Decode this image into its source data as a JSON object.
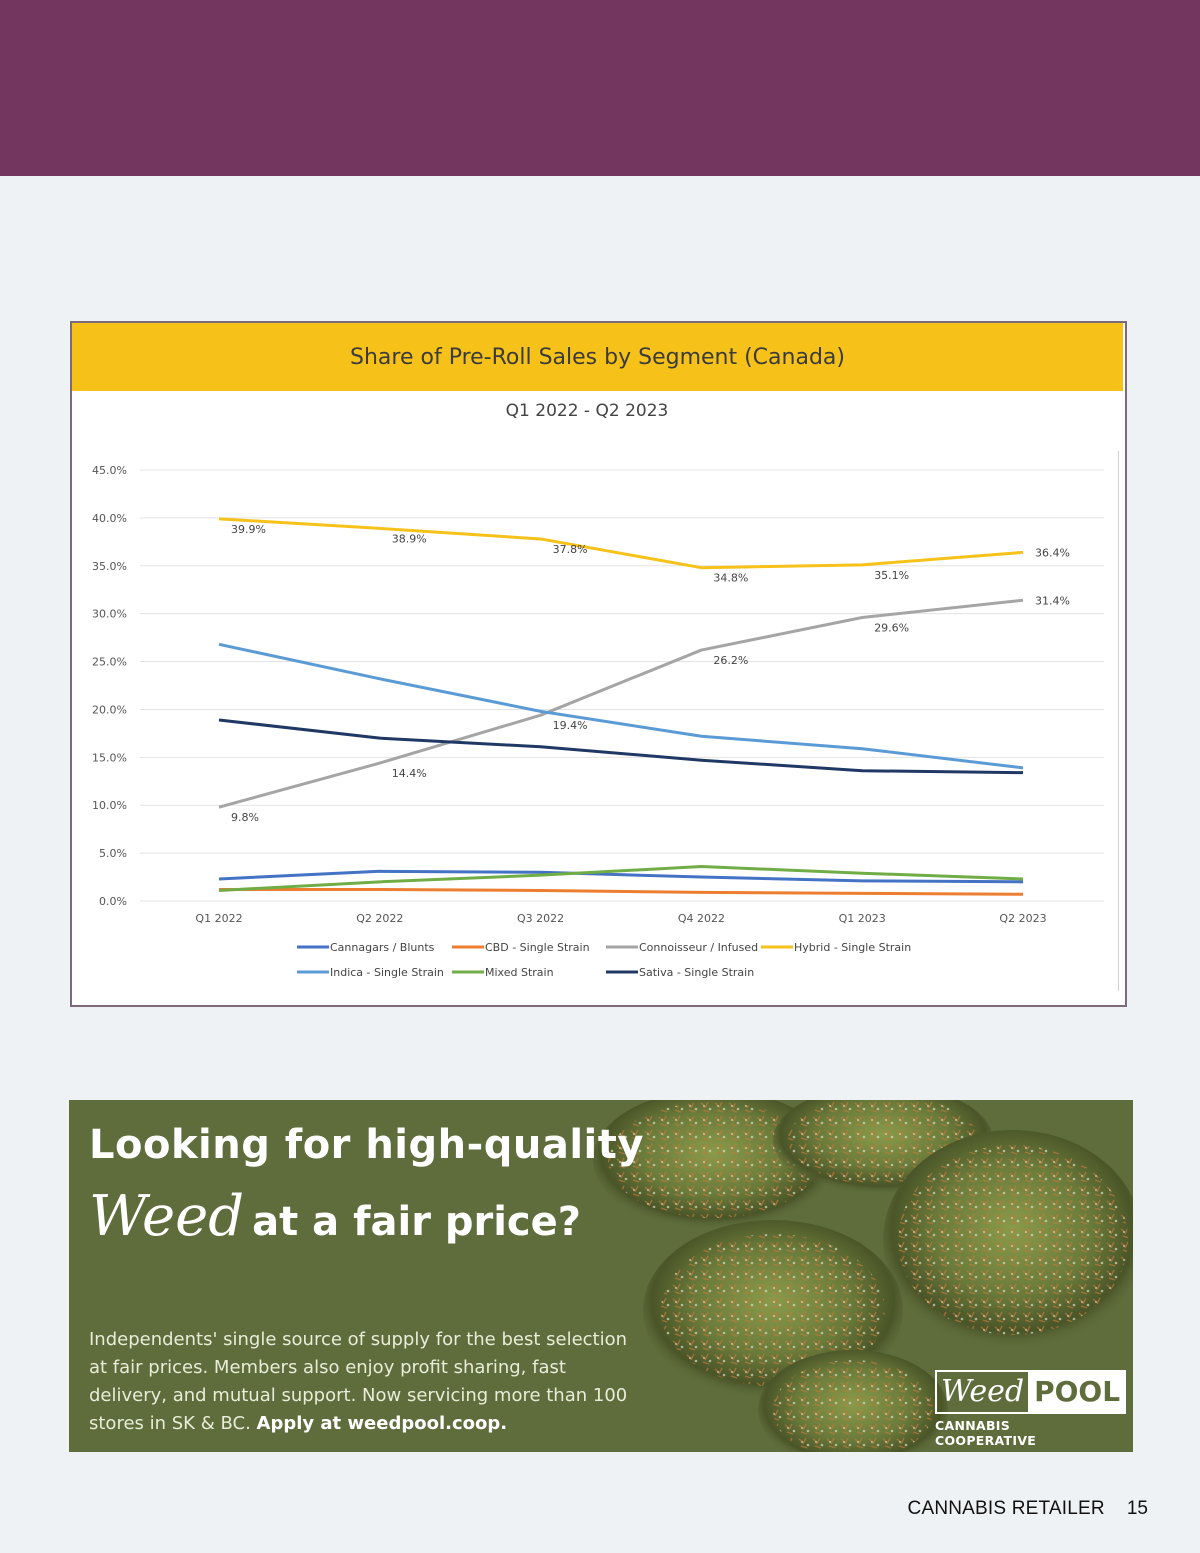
{
  "chart_data": {
    "type": "line",
    "title": "Share of Pre-Roll Sales by Segment (Canada)",
    "subtitle": "Q1 2022 - Q2 2023",
    "categories": [
      "Q1 2022",
      "Q2 2022",
      "Q3 2022",
      "Q4 2022",
      "Q1 2023",
      "Q2 2023"
    ],
    "ylim": [
      0,
      45
    ],
    "yticks": [
      "0.0%",
      "5.0%",
      "10.0%",
      "15.0%",
      "20.0%",
      "25.0%",
      "30.0%",
      "35.0%",
      "40.0%",
      "45.0%"
    ],
    "grid": true,
    "legend_position": "bottom",
    "series": [
      {
        "name": "Cannagars / Blunts",
        "color": "#4472c4",
        "values": [
          2.3,
          3.1,
          3.0,
          2.5,
          2.1,
          2.0
        ],
        "labels": []
      },
      {
        "name": "CBD - Single Strain",
        "color": "#ed7d31",
        "values": [
          1.2,
          1.2,
          1.1,
          0.9,
          0.8,
          0.7
        ],
        "labels": []
      },
      {
        "name": "Connoisseur / Infused",
        "color": "#a5a5a5",
        "values": [
          9.8,
          14.4,
          19.4,
          26.2,
          29.6,
          31.4
        ],
        "labels": [
          "9.8%",
          "14.4%",
          "19.4%",
          "26.2%",
          "29.6%",
          "31.4%"
        ]
      },
      {
        "name": "Hybrid - Single Strain",
        "color": "#f6c219",
        "values": [
          39.9,
          38.9,
          37.8,
          34.8,
          35.1,
          36.4
        ],
        "labels": [
          "39.9%",
          "38.9%",
          "37.8%",
          "34.8%",
          "35.1%",
          "36.4%"
        ]
      },
      {
        "name": "Indica - Single Strain",
        "color": "#5b9bd5",
        "values": [
          26.8,
          23.2,
          19.8,
          17.2,
          15.9,
          13.9
        ],
        "labels": []
      },
      {
        "name": "Mixed Strain",
        "color": "#70ad47",
        "values": [
          1.1,
          2.0,
          2.7,
          3.6,
          2.9,
          2.3
        ],
        "labels": []
      },
      {
        "name": "Sativa - Single Strain",
        "color": "#203864",
        "values": [
          18.9,
          17.0,
          16.1,
          14.7,
          13.6,
          13.4
        ],
        "labels": []
      }
    ]
  },
  "ad": {
    "headline_line1": "Looking for high-quality",
    "headline_script": "Weed",
    "headline_rest": "at a fair price?",
    "body": "Independents' single source of supply for the best selection at fair prices. Members also enjoy profit sharing, fast delivery, and mutual support. Now servicing more than 100 stores in SK & BC.",
    "cta": "Apply at weedpool.coop.",
    "logo_script": "Weed",
    "logo_block": "POOL",
    "logo_tagline": "CANNABIS COOPERATIVE",
    "background_color": "#5f6d3c"
  },
  "footer": {
    "publication": "CANNABIS RETAILER",
    "page_number": "15"
  },
  "colors": {
    "banner": "#73365e",
    "chart_header": "#f6c219"
  }
}
